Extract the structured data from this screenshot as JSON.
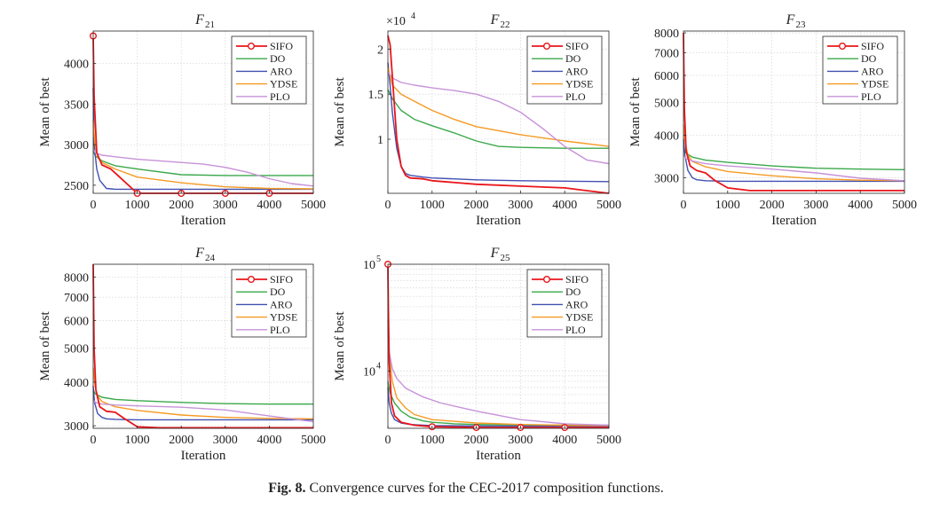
{
  "caption": {
    "label": "Fig. 8.",
    "text": "Convergence curves for the CEC-2017 composition functions."
  },
  "series_styles": {
    "SIFO": {
      "color": "#e8161b",
      "marker": "circle-open"
    },
    "DO": {
      "color": "#3aa84a",
      "marker": "none"
    },
    "ARO": {
      "color": "#4050b0",
      "marker": "none"
    },
    "YDSE": {
      "color": "#f59a23",
      "marker": "none"
    },
    "PLO": {
      "color": "#c792d8",
      "marker": "none"
    }
  },
  "chart_data": [
    {
      "type": "line",
      "title": "F",
      "title_sub": "21",
      "xlabel": "Iteration",
      "ylabel": "Mean of best",
      "xlim": [
        0,
        5000
      ],
      "ylim": [
        2400,
        4400
      ],
      "yscale": "linear",
      "xticks": [
        0,
        1000,
        2000,
        3000,
        4000,
        5000
      ],
      "yticks": [
        2500,
        3000,
        3500,
        4000
      ],
      "legend": [
        "SIFO",
        "DO",
        "ARO",
        "YDSE",
        "PLO"
      ],
      "legend_position": "top-right",
      "series": [
        {
          "name": "SIFO",
          "x": [
            0,
            20,
            80,
            200,
            400,
            600,
            1000,
            1500,
            2000,
            3000,
            4000,
            5000
          ],
          "y": [
            4340,
            3600,
            2900,
            2750,
            2700,
            2600,
            2400,
            2400,
            2400,
            2400,
            2400,
            2400
          ],
          "markers_x": [
            0,
            1000,
            2000,
            3000,
            4000
          ]
        },
        {
          "name": "DO",
          "x": [
            0,
            50,
            200,
            500,
            1000,
            2000,
            3000,
            4000,
            5000
          ],
          "y": [
            2920,
            2860,
            2800,
            2740,
            2700,
            2630,
            2620,
            2620,
            2620
          ]
        },
        {
          "name": "ARO",
          "x": [
            0,
            20,
            80,
            150,
            300,
            500,
            1000,
            3000,
            5000
          ],
          "y": [
            3700,
            3000,
            2700,
            2560,
            2460,
            2450,
            2450,
            2450,
            2450
          ]
        },
        {
          "name": "YDSE",
          "x": [
            0,
            40,
            100,
            200,
            500,
            1000,
            2000,
            3000,
            4000,
            5000
          ],
          "y": [
            3300,
            3000,
            2850,
            2780,
            2700,
            2600,
            2530,
            2480,
            2460,
            2455
          ]
        },
        {
          "name": "PLO",
          "x": [
            0,
            50,
            200,
            500,
            1000,
            2000,
            2500,
            3000,
            3500,
            4000,
            4500,
            5000
          ],
          "y": [
            2950,
            2900,
            2870,
            2850,
            2820,
            2780,
            2760,
            2720,
            2660,
            2580,
            2520,
            2490
          ]
        }
      ]
    },
    {
      "type": "line",
      "title": "F",
      "title_sub": "22",
      "xlabel": "Iteration",
      "ylabel": "Mean of best",
      "xlim": [
        0,
        5000
      ],
      "ylim": [
        0.4,
        2.2
      ],
      "yscale": "linear",
      "exponent_label": "×10",
      "exponent_power": "4",
      "xticks": [
        0,
        1000,
        2000,
        3000,
        4000,
        5000
      ],
      "yticks": [
        1,
        1.5,
        2
      ],
      "legend": [
        "SIFO",
        "DO",
        "ARO",
        "YDSE",
        "PLO"
      ],
      "legend_position": "top-right",
      "series": [
        {
          "name": "SIFO",
          "x": [
            0,
            50,
            100,
            200,
            300,
            400,
            500,
            800,
            1000,
            2000,
            3000,
            4000,
            4500,
            5000
          ],
          "y": [
            2.15,
            2.05,
            1.7,
            1.0,
            0.7,
            0.6,
            0.57,
            0.56,
            0.54,
            0.5,
            0.48,
            0.46,
            0.43,
            0.4
          ]
        },
        {
          "name": "DO",
          "x": [
            0,
            100,
            300,
            600,
            1000,
            1500,
            2000,
            2500,
            3000,
            4000,
            5000
          ],
          "y": [
            1.55,
            1.45,
            1.32,
            1.22,
            1.15,
            1.07,
            0.98,
            0.92,
            0.91,
            0.9,
            0.9
          ]
        },
        {
          "name": "ARO",
          "x": [
            0,
            50,
            100,
            200,
            300,
            400,
            500,
            800,
            1000,
            2000,
            3000,
            5000
          ],
          "y": [
            1.85,
            1.6,
            1.3,
            0.9,
            0.7,
            0.62,
            0.6,
            0.58,
            0.57,
            0.55,
            0.54,
            0.53
          ]
        },
        {
          "name": "YDSE",
          "x": [
            0,
            100,
            300,
            600,
            1000,
            1500,
            2000,
            3000,
            4000,
            5000
          ],
          "y": [
            1.8,
            1.6,
            1.5,
            1.42,
            1.32,
            1.22,
            1.14,
            1.05,
            0.98,
            0.92
          ]
        },
        {
          "name": "PLO",
          "x": [
            0,
            100,
            300,
            600,
            1000,
            1500,
            2000,
            2500,
            3000,
            3500,
            4000,
            4500,
            5000
          ],
          "y": [
            1.75,
            1.68,
            1.63,
            1.6,
            1.57,
            1.54,
            1.5,
            1.42,
            1.3,
            1.12,
            0.92,
            0.77,
            0.73
          ]
        }
      ]
    },
    {
      "type": "line",
      "title": "F",
      "title_sub": "23",
      "xlabel": "Iteration",
      "ylabel": "Mean of best",
      "xlim": [
        0,
        5000
      ],
      "ylim": [
        2700,
        8100
      ],
      "yscale": "log",
      "xticks": [
        0,
        1000,
        2000,
        3000,
        4000,
        5000
      ],
      "yticks": [
        3000,
        4000,
        5000,
        6000,
        7000,
        8000
      ],
      "legend": [
        "SIFO",
        "DO",
        "ARO",
        "YDSE",
        "PLO"
      ],
      "legend_position": "top-right",
      "series": [
        {
          "name": "SIFO",
          "x": [
            0,
            20,
            60,
            150,
            300,
            500,
            700,
            1000,
            1500,
            2000,
            3000,
            4000,
            5000
          ],
          "y": [
            8000,
            4800,
            3600,
            3250,
            3150,
            3100,
            2950,
            2800,
            2750,
            2750,
            2750,
            2750,
            2750
          ]
        },
        {
          "name": "DO",
          "x": [
            0,
            50,
            200,
            500,
            1000,
            2000,
            3000,
            4000,
            5000
          ],
          "y": [
            3700,
            3550,
            3450,
            3380,
            3330,
            3250,
            3200,
            3180,
            3170
          ]
        },
        {
          "name": "ARO",
          "x": [
            0,
            30,
            100,
            200,
            300,
            500,
            1000,
            3000,
            5000
          ],
          "y": [
            3900,
            3500,
            3150,
            3000,
            2960,
            2940,
            2930,
            2930,
            2930
          ]
        },
        {
          "name": "YDSE",
          "x": [
            0,
            40,
            100,
            200,
            500,
            1000,
            2000,
            3000,
            4000,
            5000
          ],
          "y": [
            4300,
            3800,
            3500,
            3350,
            3230,
            3130,
            3040,
            2980,
            2950,
            2940
          ]
        },
        {
          "name": "PLO",
          "x": [
            0,
            50,
            200,
            500,
            1000,
            2000,
            3000,
            4000,
            5000
          ],
          "y": [
            3500,
            3420,
            3360,
            3300,
            3250,
            3180,
            3100,
            2990,
            2940
          ]
        }
      ]
    },
    {
      "type": "line",
      "title": "F",
      "title_sub": "24",
      "xlabel": "Iteration",
      "ylabel": "Mean of best",
      "xlim": [
        0,
        5000
      ],
      "ylim": [
        2950,
        8700
      ],
      "yscale": "log",
      "xticks": [
        0,
        1000,
        2000,
        3000,
        4000,
        5000
      ],
      "yticks": [
        3000,
        4000,
        5000,
        6000,
        7000,
        8000
      ],
      "legend": [
        "SIFO",
        "DO",
        "ARO",
        "YDSE",
        "PLO"
      ],
      "legend_position": "top-right",
      "series": [
        {
          "name": "SIFO",
          "x": [
            0,
            20,
            60,
            150,
            300,
            500,
            700,
            1000,
            1500,
            2000,
            3000,
            4000,
            5000
          ],
          "y": [
            8700,
            5000,
            3800,
            3400,
            3300,
            3280,
            3150,
            2980,
            2960,
            2960,
            2960,
            2960,
            2960
          ]
        },
        {
          "name": "DO",
          "x": [
            0,
            50,
            200,
            500,
            1000,
            2000,
            3000,
            4000,
            5000
          ],
          "y": [
            3800,
            3700,
            3620,
            3570,
            3540,
            3500,
            3470,
            3460,
            3460
          ]
        },
        {
          "name": "ARO",
          "x": [
            0,
            30,
            100,
            200,
            300,
            500,
            1000,
            3000,
            5000
          ],
          "y": [
            3900,
            3500,
            3250,
            3170,
            3140,
            3130,
            3120,
            3120,
            3120
          ]
        },
        {
          "name": "YDSE",
          "x": [
            0,
            40,
            100,
            200,
            500,
            1000,
            2000,
            3000,
            4000,
            5000
          ],
          "y": [
            4400,
            3900,
            3650,
            3520,
            3400,
            3320,
            3220,
            3170,
            3150,
            3140
          ]
        },
        {
          "name": "PLO",
          "x": [
            0,
            50,
            200,
            500,
            1000,
            2000,
            3000,
            4000,
            5000
          ],
          "y": [
            3550,
            3500,
            3460,
            3440,
            3420,
            3390,
            3330,
            3200,
            3080
          ]
        }
      ]
    },
    {
      "type": "line",
      "title": "F",
      "title_sub": "25",
      "xlabel": "Iteration",
      "ylabel": "Mean of best",
      "xlim": [
        0,
        5000
      ],
      "ylim": [
        2900,
        100000
      ],
      "yscale": "log",
      "xticks": [
        0,
        1000,
        2000,
        3000,
        4000,
        5000
      ],
      "yticks": [
        10000,
        100000
      ],
      "ytick_labels": [
        {
          "base": "10",
          "power": "4"
        },
        {
          "base": "10",
          "power": "5"
        }
      ],
      "legend": [
        "SIFO",
        "DO",
        "ARO",
        "YDSE",
        "PLO"
      ],
      "legend_position": "top-right",
      "series": [
        {
          "name": "SIFO",
          "x": [
            0,
            10,
            30,
            80,
            150,
            300,
            600,
            1000,
            2000,
            3000,
            4000,
            5000
          ],
          "y": [
            100000,
            40000,
            12000,
            5000,
            3800,
            3300,
            3100,
            3000,
            2950,
            2950,
            2950,
            2950
          ],
          "markers_x": [
            0,
            1000,
            2000,
            3000,
            4000
          ]
        },
        {
          "name": "DO",
          "x": [
            0,
            50,
            150,
            300,
            500,
            800,
            1000,
            1500,
            2000,
            3000,
            4000,
            5000
          ],
          "y": [
            8000,
            6200,
            5000,
            4200,
            3700,
            3400,
            3300,
            3200,
            3150,
            3120,
            3100,
            3100
          ]
        },
        {
          "name": "ARO",
          "x": [
            0,
            30,
            80,
            150,
            300,
            500,
            1000,
            2000,
            3000,
            5000
          ],
          "y": [
            7000,
            5000,
            4000,
            3500,
            3250,
            3150,
            3080,
            3050,
            3040,
            3030
          ]
        },
        {
          "name": "YDSE",
          "x": [
            0,
            30,
            100,
            200,
            400,
            600,
            1000,
            2000,
            3000,
            4000,
            5000
          ],
          "y": [
            30000,
            14000,
            8000,
            5600,
            4500,
            3900,
            3500,
            3250,
            3150,
            3100,
            3080
          ]
        },
        {
          "name": "PLO",
          "x": [
            0,
            30,
            100,
            200,
            400,
            800,
            1200,
            2000,
            3000,
            4000,
            5000
          ],
          "y": [
            25000,
            15000,
            10500,
            8500,
            6900,
            5700,
            5000,
            4200,
            3500,
            3200,
            3100
          ]
        }
      ]
    }
  ]
}
